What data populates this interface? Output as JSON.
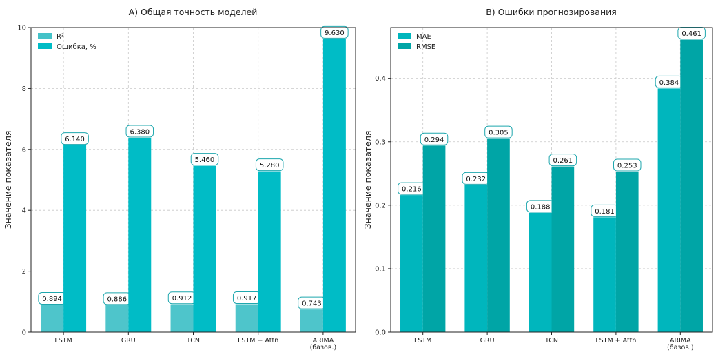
{
  "chart_data": [
    {
      "type": "bar",
      "title": "A) Общая точность моделей",
      "xlabel": "",
      "ylabel": "Значение показателя",
      "ylim": [
        0,
        10
      ],
      "yticks": [
        "0",
        "2",
        "4",
        "6",
        "8",
        "10"
      ],
      "grid": true,
      "legend_position": "top-left",
      "categories": [
        "LSTM",
        "GRU",
        "TCN",
        "LSTM + Attn",
        "ARIMA\n(базов.)"
      ],
      "series": [
        {
          "name": "R²",
          "values": [
            0.894,
            0.886,
            0.912,
            0.917,
            0.743
          ],
          "labels": [
            "0.894",
            "0.886",
            "0.912",
            "0.917",
            "0.743"
          ],
          "color": "#44c2c8"
        },
        {
          "name": "Ошибка, %",
          "values": [
            6.14,
            6.38,
            5.46,
            5.28,
            9.63
          ],
          "labels": [
            "6.140",
            "6.380",
            "5.460",
            "5.280",
            "9.630"
          ],
          "color": "#00bcc6"
        }
      ]
    },
    {
      "type": "bar",
      "title": "B) Ошибки прогнозирования",
      "xlabel": "",
      "ylabel": "Значение показателя",
      "ylim": [
        0,
        0.48
      ],
      "yticks": [
        "0.0",
        "0.1",
        "0.2",
        "0.3",
        "0.4"
      ],
      "grid": true,
      "legend_position": "top-left",
      "categories": [
        "LSTM",
        "GRU",
        "TCN",
        "LSTM + Attn",
        "ARIMA\n(базов.)"
      ],
      "series": [
        {
          "name": "MAE",
          "values": [
            0.216,
            0.232,
            0.188,
            0.181,
            0.384
          ],
          "labels": [
            "0.216",
            "0.232",
            "0.188",
            "0.181",
            "0.384"
          ],
          "color": "#00b6bd"
        },
        {
          "name": "RMSE",
          "values": [
            0.294,
            0.305,
            0.261,
            0.253,
            0.461
          ],
          "labels": [
            "0.294",
            "0.305",
            "0.261",
            "0.253",
            "0.461"
          ],
          "color": "#00a5a6"
        }
      ]
    }
  ]
}
